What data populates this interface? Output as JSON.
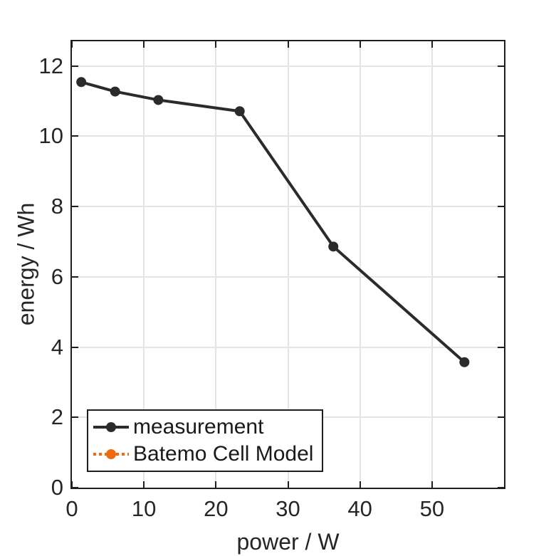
{
  "chart_data": {
    "type": "line",
    "title": "",
    "xlabel": "power / W",
    "ylabel": "energy / Wh",
    "xlim": [
      0,
      60
    ],
    "ylim": [
      0,
      12.7
    ],
    "xticks": [
      0,
      10,
      20,
      30,
      40,
      50
    ],
    "yticks": [
      0,
      2,
      4,
      6,
      8,
      10,
      12
    ],
    "grid": true,
    "box": true,
    "legend_position": "inside-bottom-left",
    "series": [
      {
        "name": "measurement",
        "color": "#2b2b2b",
        "line_style": "solid",
        "marker": "circle",
        "visible_in_plot": true,
        "x": [
          1.3,
          6.0,
          12.0,
          23.3,
          36.3,
          54.5
        ],
        "y": [
          11.54,
          11.27,
          11.03,
          10.71,
          6.86,
          3.57
        ]
      },
      {
        "name": "Batemo Cell Model",
        "color": "#ed6a0f",
        "line_style": "dotted",
        "marker": "circle",
        "visible_in_plot": false,
        "x": [],
        "y": []
      }
    ]
  },
  "colors": {
    "axis": "#1f1f1f",
    "text": "#262626",
    "grid": "#e4e4e4"
  }
}
